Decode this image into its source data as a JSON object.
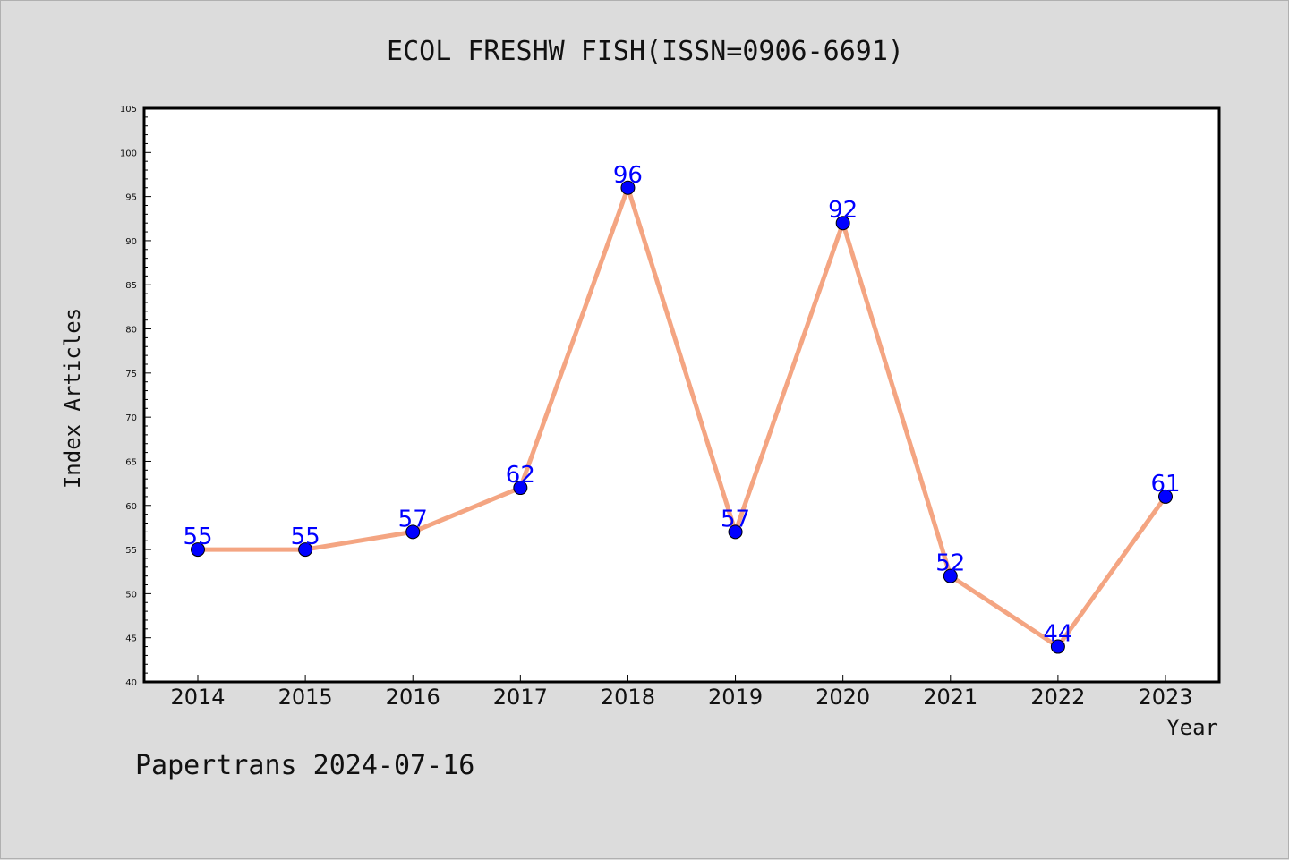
{
  "chart_data": {
    "type": "line",
    "title": "ECOL FRESHW FISH(ISSN=0906-6691)",
    "xlabel": "Year",
    "ylabel": "Index Articles",
    "footer": "Papertrans 2024-07-16",
    "categories": [
      "2014",
      "2015",
      "2016",
      "2017",
      "2018",
      "2019",
      "2020",
      "2021",
      "2022",
      "2023"
    ],
    "series": [
      {
        "values": [
          55,
          55,
          57,
          62,
          96,
          57,
          92,
          52,
          44,
          61
        ]
      }
    ],
    "ylim": [
      40,
      105
    ],
    "yticks": [
      40,
      45,
      50,
      55,
      60,
      65,
      70,
      75,
      80,
      85,
      90,
      95,
      100,
      105
    ],
    "grid": false,
    "legend": "none",
    "colors": {
      "line": "#f4a582",
      "marker": "#0000ff",
      "label": "#0000ff",
      "plot_bg": "#ffffff",
      "page_bg": "#dcdcdc"
    }
  }
}
